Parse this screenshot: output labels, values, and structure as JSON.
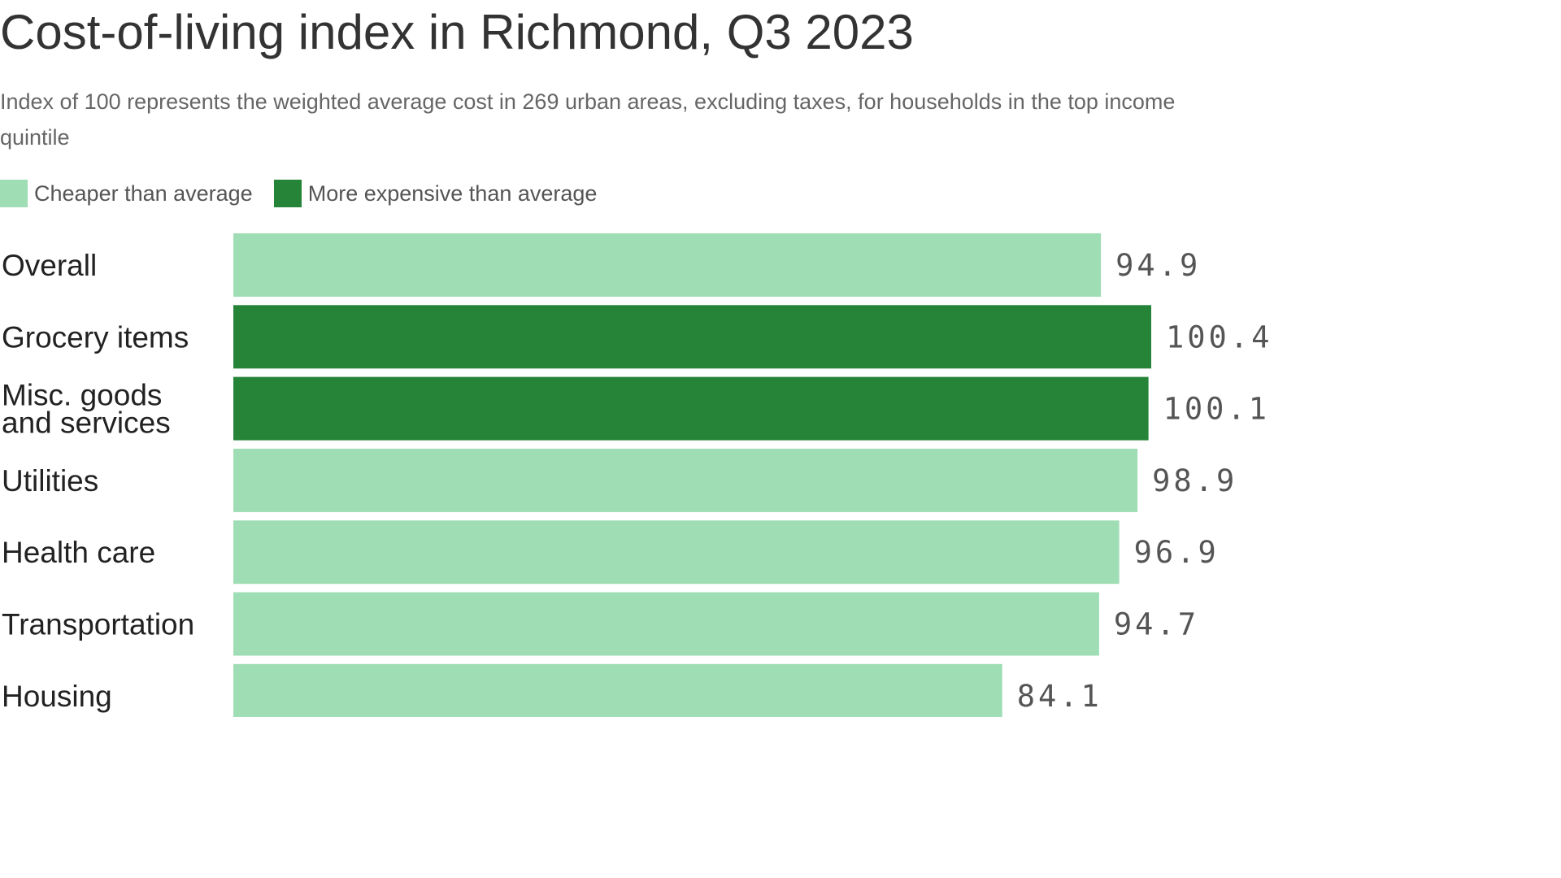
{
  "title": "Cost-of-living index in Richmond, Q3 2023",
  "subtitle": "Index of 100 represents the weighted average cost in 269 urban areas, excluding taxes, for households in the top income quintile",
  "legend": {
    "items": [
      {
        "label": "Cheaper than average",
        "color": "#9fddb5"
      },
      {
        "label": "More expensive than average",
        "color": "#268438"
      }
    ]
  },
  "chart_data": {
    "type": "bar",
    "orientation": "horizontal",
    "categories": [
      "Overall",
      "Grocery items",
      "Misc. goods and services",
      "Utilities",
      "Health care",
      "Transportation",
      "Housing"
    ],
    "category_lines": [
      [
        "Overall"
      ],
      [
        "Grocery items"
      ],
      [
        "Misc. goods",
        "and services"
      ],
      [
        "Utilities"
      ],
      [
        "Health care"
      ],
      [
        "Transportation"
      ],
      [
        "Housing"
      ]
    ],
    "values": [
      94.9,
      100.4,
      100.1,
      98.9,
      96.9,
      94.7,
      84.1
    ],
    "value_labels": [
      "94.9",
      "100.4",
      "100.1",
      "98.9",
      "96.9",
      "94.7",
      "84.1"
    ],
    "baseline": 100,
    "colors": {
      "below": "#9fddb5",
      "above": "#268438"
    },
    "xlim": [
      0,
      100.4
    ],
    "grid": false,
    "legend_position": "top-left"
  }
}
